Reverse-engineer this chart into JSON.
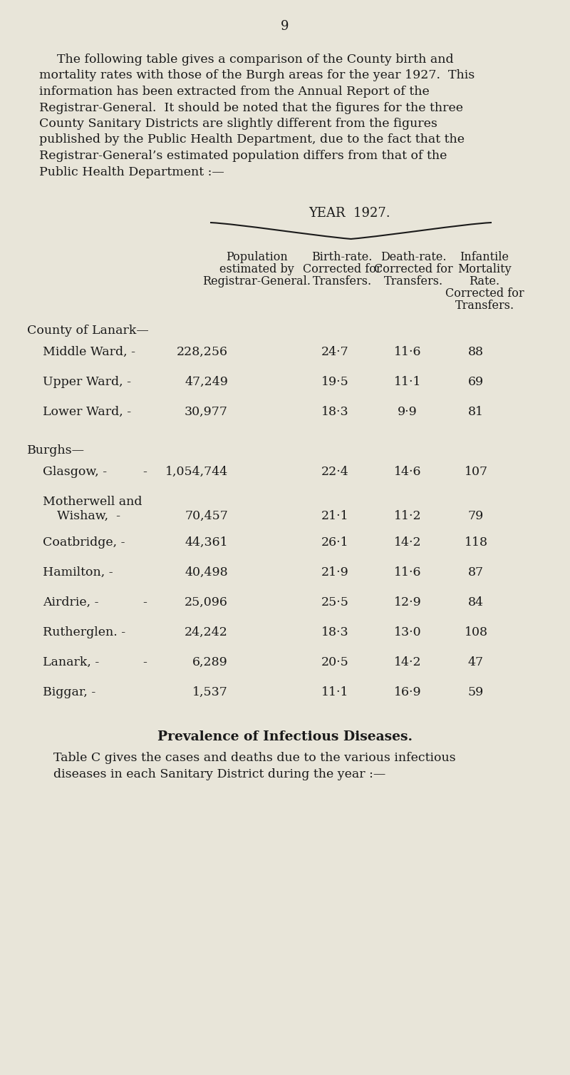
{
  "page_number": "9",
  "bg_color": "#e8e5d9",
  "text_color": "#1a1a1a",
  "intro_text": [
    "The following table gives a comparison of the County birth and",
    "mortality rates with those of the Burgh areas for the year 1927.  This",
    "information has been extracted from the Annual Report of the",
    "Registrar-General.  It should be noted that the figures for the three",
    "County Sanitary Districts are slightly different from the figures",
    "published by the Public Health Department, due to the fact that the",
    "Registrar-General’s estimated population differs from that of the",
    "Public Health Department :—"
  ],
  "year_label": "YEAR  1927.",
  "col_headers": [
    [
      "Population",
      "estimated by",
      "Registrar-General."
    ],
    [
      "Birth-rate.",
      "Corrected for",
      "Transfers."
    ],
    [
      "Death-rate.",
      "Corrected for",
      "Transfers."
    ],
    [
      "Infantile",
      "Mortality",
      "Rate.",
      "Corrected for",
      "Transfers."
    ]
  ],
  "section1_header": "County of Lanark—",
  "section1_rows": [
    [
      "Middle Ward, -",
      "228,256",
      "24·7",
      "11·6",
      "88"
    ],
    [
      "Upper Ward, -",
      "47,249",
      "19·5",
      "11·1",
      "69"
    ],
    [
      "Lower Ward, -",
      "30,977",
      "18·3",
      "9·9",
      "81"
    ]
  ],
  "section2_header": "Burghs—",
  "section2_rows": [
    [
      "Glasgow, -",
      "-",
      "1,054,744",
      "22·4",
      "14·6",
      "107"
    ],
    [
      "Motherwell and",
      "Wishaw,  -",
      "70,457",
      "21·1",
      "11·2",
      "79"
    ],
    [
      "Coatbridge, -",
      "",
      "44,361",
      "26·1",
      "14·2",
      "118"
    ],
    [
      "Hamilton, -",
      "",
      "40,498",
      "21·9",
      "11·6",
      "87"
    ],
    [
      "Airdrie, -",
      "-",
      "25,096",
      "25·5",
      "12·9",
      "84"
    ],
    [
      "Rutherglen. -",
      "",
      "24,242",
      "18·3",
      "13·0",
      "108"
    ],
    [
      "Lanark, -",
      "-",
      "6,289",
      "20·5",
      "14·2",
      "47"
    ],
    [
      "Biggar, -",
      "",
      "1,537",
      "11·1",
      "16·9",
      "59"
    ]
  ],
  "footer_bold": "Prevalence of Infectious Diseases.",
  "footer_text": [
    "Table C gives the cases and deaths due to the various infectious",
    "diseases in each Sanitary District during the year :—"
  ]
}
